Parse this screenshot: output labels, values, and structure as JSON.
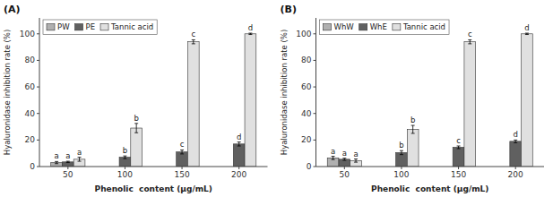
{
  "chart_data": [
    {
      "type": "bar",
      "title": "(A)",
      "categories": [
        "50",
        "100",
        "150",
        "200"
      ],
      "series": [
        {
          "name": "PW",
          "color": "#b0b0b0",
          "values": [
            3.0,
            null,
            null,
            null
          ],
          "errors": [
            0.8,
            null,
            null,
            null
          ],
          "letters": [
            "a",
            null,
            null,
            null
          ]
        },
        {
          "name": "PE",
          "color": "#606060",
          "values": [
            3.5,
            7.0,
            11.0,
            17.0
          ],
          "errors": [
            0.5,
            1.0,
            1.5,
            1.5
          ],
          "letters": [
            "a",
            "b",
            "c",
            "d"
          ]
        },
        {
          "name": "Tannic acid",
          "color": "#e0e0e0",
          "values": [
            5.5,
            29.0,
            94.0,
            100.0
          ],
          "errors": [
            1.5,
            3.5,
            1.5,
            0.5
          ],
          "letters": [
            "a",
            "b",
            "c",
            "d"
          ]
        }
      ],
      "xlabel": "Phenolic  content (μg/mL)",
      "ylabel": "Hyaluronidase inhibition rate (%)",
      "ylim": [
        0,
        112
      ],
      "yticks": [
        0,
        20,
        40,
        60,
        80,
        100
      ],
      "legend": "upper left",
      "grid": false
    },
    {
      "type": "bar",
      "title": "(B)",
      "categories": [
        "50",
        "100",
        "150",
        "200"
      ],
      "series": [
        {
          "name": "WhW",
          "color": "#b0b0b0",
          "values": [
            6.5,
            null,
            null,
            null
          ],
          "errors": [
            1.2,
            null,
            null,
            null
          ],
          "letters": [
            "a",
            null,
            null,
            null
          ]
        },
        {
          "name": "WhE",
          "color": "#606060",
          "values": [
            5.5,
            10.5,
            14.5,
            19.0
          ],
          "errors": [
            0.8,
            1.5,
            1.0,
            1.0
          ],
          "letters": [
            "a",
            "b",
            "c",
            "d"
          ]
        },
        {
          "name": "Tannic acid",
          "color": "#e0e0e0",
          "values": [
            4.5,
            28.0,
            94.0,
            100.0
          ],
          "errors": [
            1.2,
            3.0,
            1.5,
            0.5
          ],
          "letters": [
            "a",
            "b",
            "c",
            "d"
          ]
        }
      ],
      "xlabel": "Phenolic  content (μg/mL)",
      "ylabel": "Hyaluronidase inhibition rate (%)",
      "ylim": [
        0,
        112
      ],
      "yticks": [
        0,
        20,
        40,
        60,
        80,
        100
      ],
      "legend": "upper left",
      "grid": false
    }
  ]
}
